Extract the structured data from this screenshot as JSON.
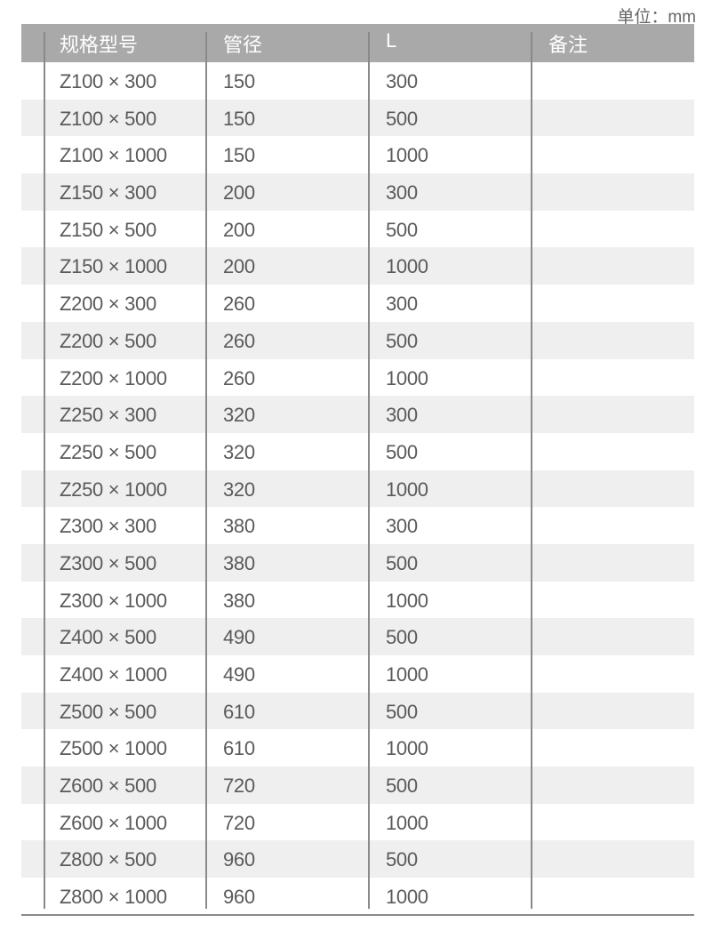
{
  "unit_label": "单位：mm",
  "table": {
    "headers": [
      "规格型号",
      "管径",
      "L",
      "备注"
    ],
    "rows": [
      [
        "Z100 × 300",
        "150",
        "300",
        ""
      ],
      [
        "Z100 × 500",
        "150",
        "500",
        ""
      ],
      [
        "Z100 × 1000",
        "150",
        "1000",
        ""
      ],
      [
        "Z150 × 300",
        "200",
        "300",
        ""
      ],
      [
        "Z150 × 500",
        "200",
        "500",
        ""
      ],
      [
        "Z150 × 1000",
        "200",
        "1000",
        ""
      ],
      [
        "Z200 × 300",
        "260",
        "300",
        ""
      ],
      [
        "Z200 × 500",
        "260",
        "500",
        ""
      ],
      [
        "Z200 × 1000",
        "260",
        "1000",
        ""
      ],
      [
        "Z250 × 300",
        "320",
        "300",
        ""
      ],
      [
        "Z250 × 500",
        "320",
        "500",
        ""
      ],
      [
        "Z250 × 1000",
        "320",
        "1000",
        ""
      ],
      [
        "Z300 × 300",
        "380",
        "300",
        ""
      ],
      [
        "Z300 × 500",
        "380",
        "500",
        ""
      ],
      [
        "Z300 × 1000",
        "380",
        "1000",
        ""
      ],
      [
        "Z400 × 500",
        "490",
        "500",
        ""
      ],
      [
        "Z400 × 1000",
        "490",
        "1000",
        ""
      ],
      [
        "Z500 × 500",
        "610",
        "500",
        ""
      ],
      [
        "Z500 × 1000",
        "610",
        "1000",
        ""
      ],
      [
        "Z600 × 500",
        "720",
        "500",
        ""
      ],
      [
        "Z600 × 1000",
        "720",
        "1000",
        ""
      ],
      [
        "Z800 × 500",
        "960",
        "500",
        ""
      ],
      [
        "Z800 × 1000",
        "960",
        "1000",
        ""
      ]
    ]
  },
  "colors": {
    "header_bg": "#a9a9a9",
    "stripe": "#efefef",
    "text": "#5a5a5a"
  }
}
